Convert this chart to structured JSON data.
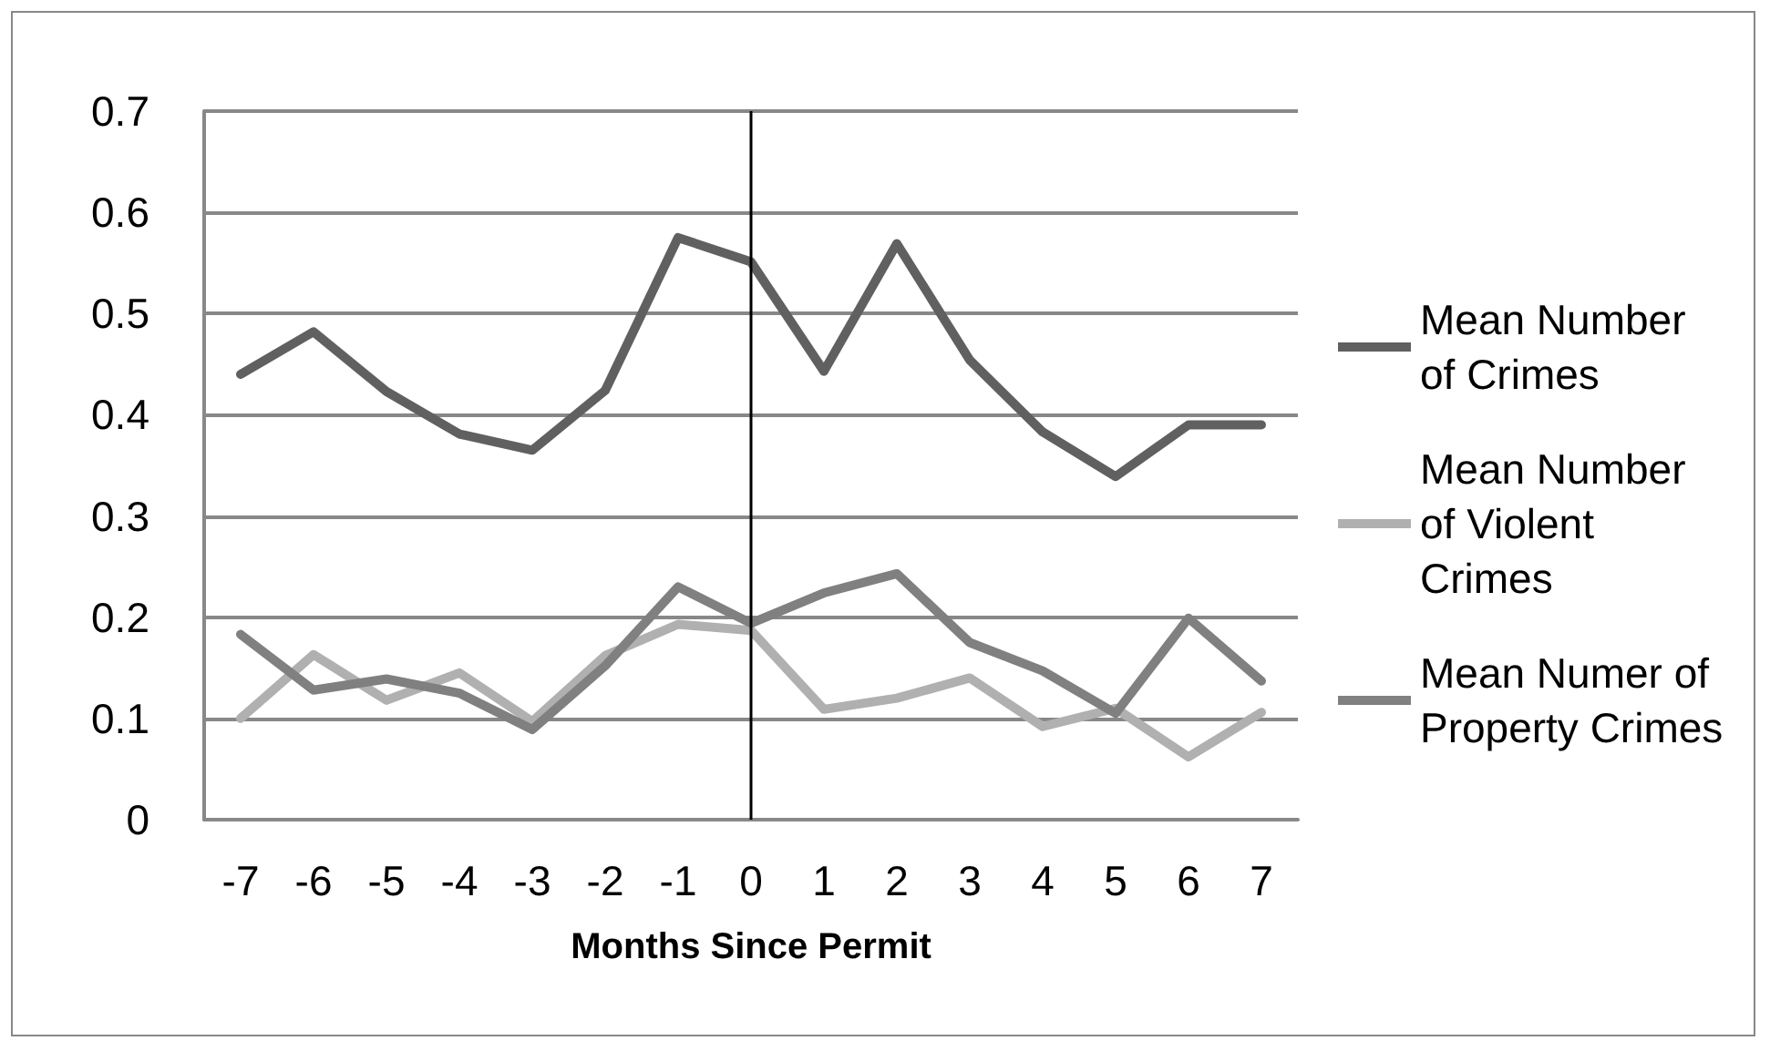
{
  "chart_data": {
    "type": "line",
    "xlabel": "Months Since Permit",
    "categories": [
      "-7",
      "-6",
      "-5",
      "-4",
      "-3",
      "-2",
      "-1",
      "0",
      "1",
      "2",
      "3",
      "4",
      "5",
      "6",
      "7"
    ],
    "series": [
      {
        "name": "Mean Number of Crimes",
        "color": "#606060",
        "values": [
          0.44,
          0.482,
          0.423,
          0.381,
          0.365,
          0.424,
          0.575,
          0.551,
          0.443,
          0.569,
          0.454,
          0.383,
          0.339,
          0.39,
          0.39
        ]
      },
      {
        "name": "Mean Number of Violent Crimes",
        "color": "#b0b0b0",
        "values": [
          0.1,
          0.163,
          0.118,
          0.145,
          0.097,
          0.162,
          0.193,
          0.187,
          0.109,
          0.12,
          0.14,
          0.092,
          0.11,
          0.062,
          0.106
        ]
      },
      {
        "name": "Mean Numer of Property Crimes",
        "color": "#808080",
        "values": [
          0.183,
          0.128,
          0.139,
          0.125,
          0.089,
          0.152,
          0.23,
          0.194,
          0.224,
          0.243,
          0.175,
          0.147,
          0.105,
          0.199,
          0.137
        ]
      }
    ],
    "ylim": [
      0,
      0.7
    ],
    "yticks": [
      0,
      0.1,
      0.2,
      0.3,
      0.4,
      0.5,
      0.6,
      0.7
    ],
    "ref_lines": [
      {
        "axis": "x",
        "value": "0",
        "color": "#000000"
      }
    ],
    "grid": "y",
    "legend": "right",
    "marker": "none",
    "line_style": "solid"
  }
}
